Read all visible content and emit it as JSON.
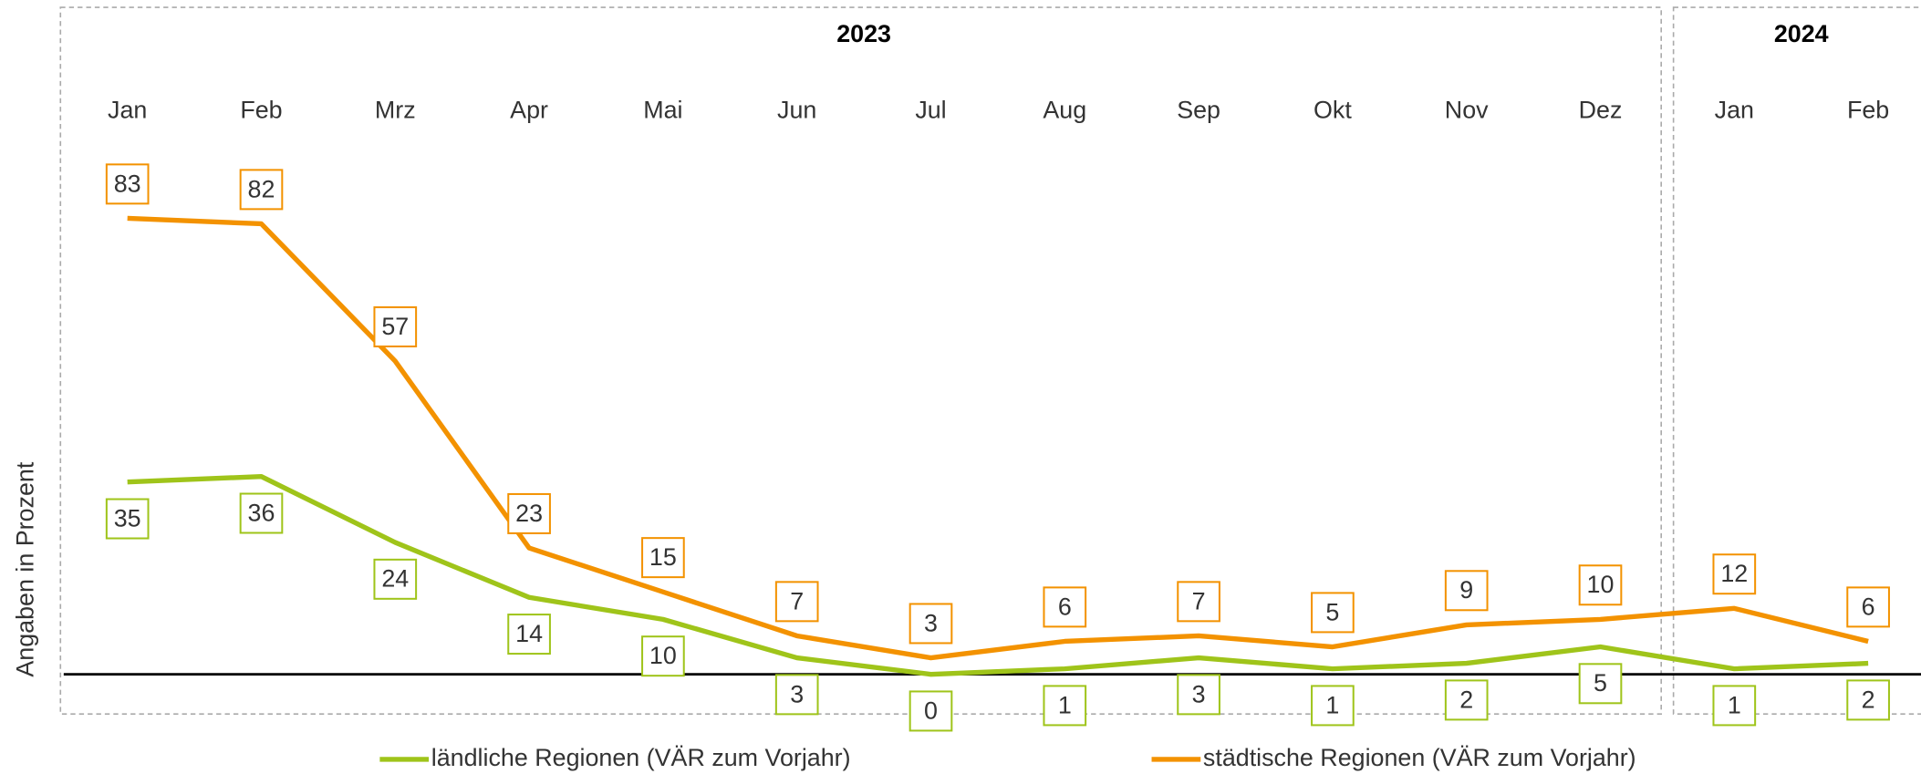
{
  "chart_data": {
    "type": "line",
    "y_label": "Angaben in Prozent",
    "categories": [
      "Jan",
      "Feb",
      "Mrz",
      "Apr",
      "Mai",
      "Jun",
      "Jul",
      "Aug",
      "Sep",
      "Okt",
      "Nov",
      "Dez",
      "Jan",
      "Feb"
    ],
    "groups": [
      {
        "label": "2023",
        "count": 12
      },
      {
        "label": "2024",
        "count": 2
      }
    ],
    "series": [
      {
        "name": "ländliche Regionen (VÄR zum Vorjahr)",
        "color": "#9fc41a",
        "label_side": "below",
        "values": [
          35,
          36,
          24,
          14,
          10,
          3,
          0,
          1,
          3,
          1,
          2,
          5,
          1,
          2
        ]
      },
      {
        "name": "städtische Regionen (VÄR zum Vorjahr)",
        "color": "#f39200",
        "label_side": "above",
        "values": [
          83,
          82,
          57,
          23,
          15,
          7,
          3,
          6,
          7,
          5,
          9,
          10,
          12,
          6
        ]
      }
    ],
    "ylim": [
      -7,
      100
    ]
  }
}
